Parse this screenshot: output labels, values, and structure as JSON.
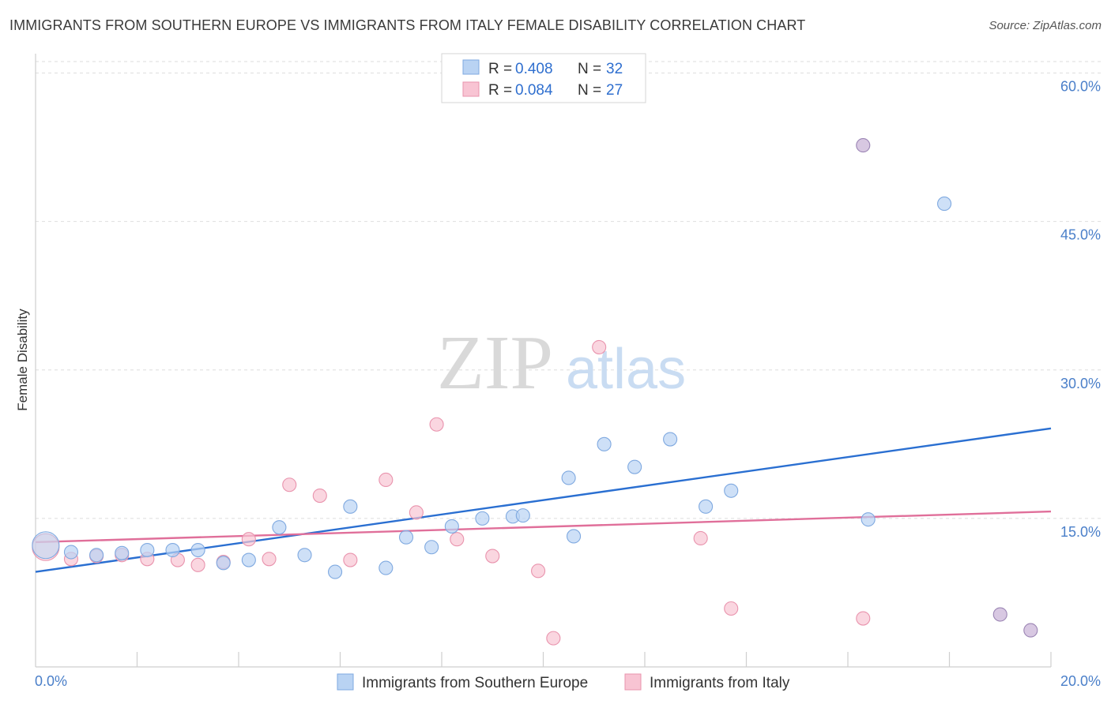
{
  "title": "IMMIGRANTS FROM SOUTHERN EUROPE VS IMMIGRANTS FROM ITALY FEMALE DISABILITY CORRELATION CHART",
  "source": "Source: ZipAtlas.com",
  "watermark": {
    "zip": "ZIP",
    "atlas": "atlas"
  },
  "colors": {
    "blue_fill": "#b9d3f3",
    "blue_stroke": "#7fa9e0",
    "blue_line": "#2a6fd1",
    "pink_fill": "#f8c4d3",
    "pink_stroke": "#e993ad",
    "pink_line": "#e06f9a",
    "purple_fill": "#c7b1d6",
    "purple_stroke": "#9b85b4",
    "grid": "#dedede",
    "axis_label": "#4a7fc9"
  },
  "legend": {
    "r_label": "R = ",
    "n_label": "N = ",
    "series": [
      {
        "r": "0.408",
        "n": "32"
      },
      {
        "r": "0.084",
        "n": "27"
      }
    ]
  },
  "chart_data": {
    "type": "scatter",
    "title": "IMMIGRANTS FROM SOUTHERN EUROPE VS IMMIGRANTS FROM ITALY FEMALE DISABILITY CORRELATION CHART",
    "xlabel": "",
    "ylabel": "Female Disability",
    "xlim": [
      0,
      20
    ],
    "ylim": [
      0,
      61
    ],
    "x_tick_labels": [
      "0.0%",
      "20.0%"
    ],
    "y_ticks": [
      15,
      30,
      45,
      60
    ],
    "y_tick_labels": [
      "15.0%",
      "30.0%",
      "45.0%",
      "60.0%"
    ],
    "grid": true,
    "series": [
      {
        "name": "Immigrants from Southern Europe",
        "color": "blue",
        "trend": {
          "x0": 0,
          "y0": 9.6,
          "x1": 20,
          "y1": 24.1
        },
        "points": [
          {
            "x": 0.2,
            "y": 12.3,
            "big": true
          },
          {
            "x": 0.7,
            "y": 11.6
          },
          {
            "x": 1.2,
            "y": 11.3
          },
          {
            "x": 1.7,
            "y": 11.5
          },
          {
            "x": 2.2,
            "y": 11.8
          },
          {
            "x": 2.7,
            "y": 11.8
          },
          {
            "x": 3.2,
            "y": 11.8
          },
          {
            "x": 3.7,
            "y": 10.5
          },
          {
            "x": 4.2,
            "y": 10.8
          },
          {
            "x": 4.8,
            "y": 14.1
          },
          {
            "x": 5.3,
            "y": 11.3
          },
          {
            "x": 5.9,
            "y": 9.6
          },
          {
            "x": 6.2,
            "y": 16.2
          },
          {
            "x": 6.9,
            "y": 10.0
          },
          {
            "x": 7.3,
            "y": 13.1
          },
          {
            "x": 7.8,
            "y": 12.1
          },
          {
            "x": 8.2,
            "y": 14.2
          },
          {
            "x": 8.8,
            "y": 15.0
          },
          {
            "x": 9.4,
            "y": 15.2
          },
          {
            "x": 9.6,
            "y": 15.3
          },
          {
            "x": 10.5,
            "y": 19.1
          },
          {
            "x": 10.6,
            "y": 13.2
          },
          {
            "x": 11.2,
            "y": 22.5
          },
          {
            "x": 11.8,
            "y": 20.2
          },
          {
            "x": 12.5,
            "y": 23.0
          },
          {
            "x": 13.2,
            "y": 16.2
          },
          {
            "x": 13.7,
            "y": 17.8
          },
          {
            "x": 16.3,
            "y": 52.7,
            "purple": true
          },
          {
            "x": 16.4,
            "y": 14.9
          },
          {
            "x": 17.9,
            "y": 46.8
          },
          {
            "x": 19.0,
            "y": 5.3,
            "purple": true
          },
          {
            "x": 19.6,
            "y": 3.7,
            "purple": true
          }
        ]
      },
      {
        "name": "Immigrants from Italy",
        "color": "pink",
        "trend": {
          "x0": 0,
          "y0": 12.6,
          "x1": 20,
          "y1": 15.7
        },
        "points": [
          {
            "x": 0.2,
            "y": 12.1,
            "big": true
          },
          {
            "x": 0.7,
            "y": 10.9
          },
          {
            "x": 1.2,
            "y": 11.2
          },
          {
            "x": 1.7,
            "y": 11.3
          },
          {
            "x": 2.2,
            "y": 10.9
          },
          {
            "x": 2.8,
            "y": 10.8
          },
          {
            "x": 3.2,
            "y": 10.3
          },
          {
            "x": 3.7,
            "y": 10.6
          },
          {
            "x": 4.2,
            "y": 12.9
          },
          {
            "x": 4.6,
            "y": 10.9
          },
          {
            "x": 5.0,
            "y": 18.4
          },
          {
            "x": 5.6,
            "y": 17.3
          },
          {
            "x": 6.2,
            "y": 10.8
          },
          {
            "x": 6.9,
            "y": 18.9
          },
          {
            "x": 7.5,
            "y": 15.6
          },
          {
            "x": 7.9,
            "y": 24.5
          },
          {
            "x": 8.3,
            "y": 12.9
          },
          {
            "x": 9.0,
            "y": 11.2
          },
          {
            "x": 9.9,
            "y": 9.7
          },
          {
            "x": 10.2,
            "y": 2.9
          },
          {
            "x": 11.1,
            "y": 32.3
          },
          {
            "x": 13.1,
            "y": 13.0
          },
          {
            "x": 13.7,
            "y": 5.9
          },
          {
            "x": 16.3,
            "y": 4.9
          }
        ]
      }
    ]
  },
  "bottom_legend": [
    {
      "label": "Immigrants from Southern Europe"
    },
    {
      "label": "Immigrants from Italy"
    }
  ]
}
